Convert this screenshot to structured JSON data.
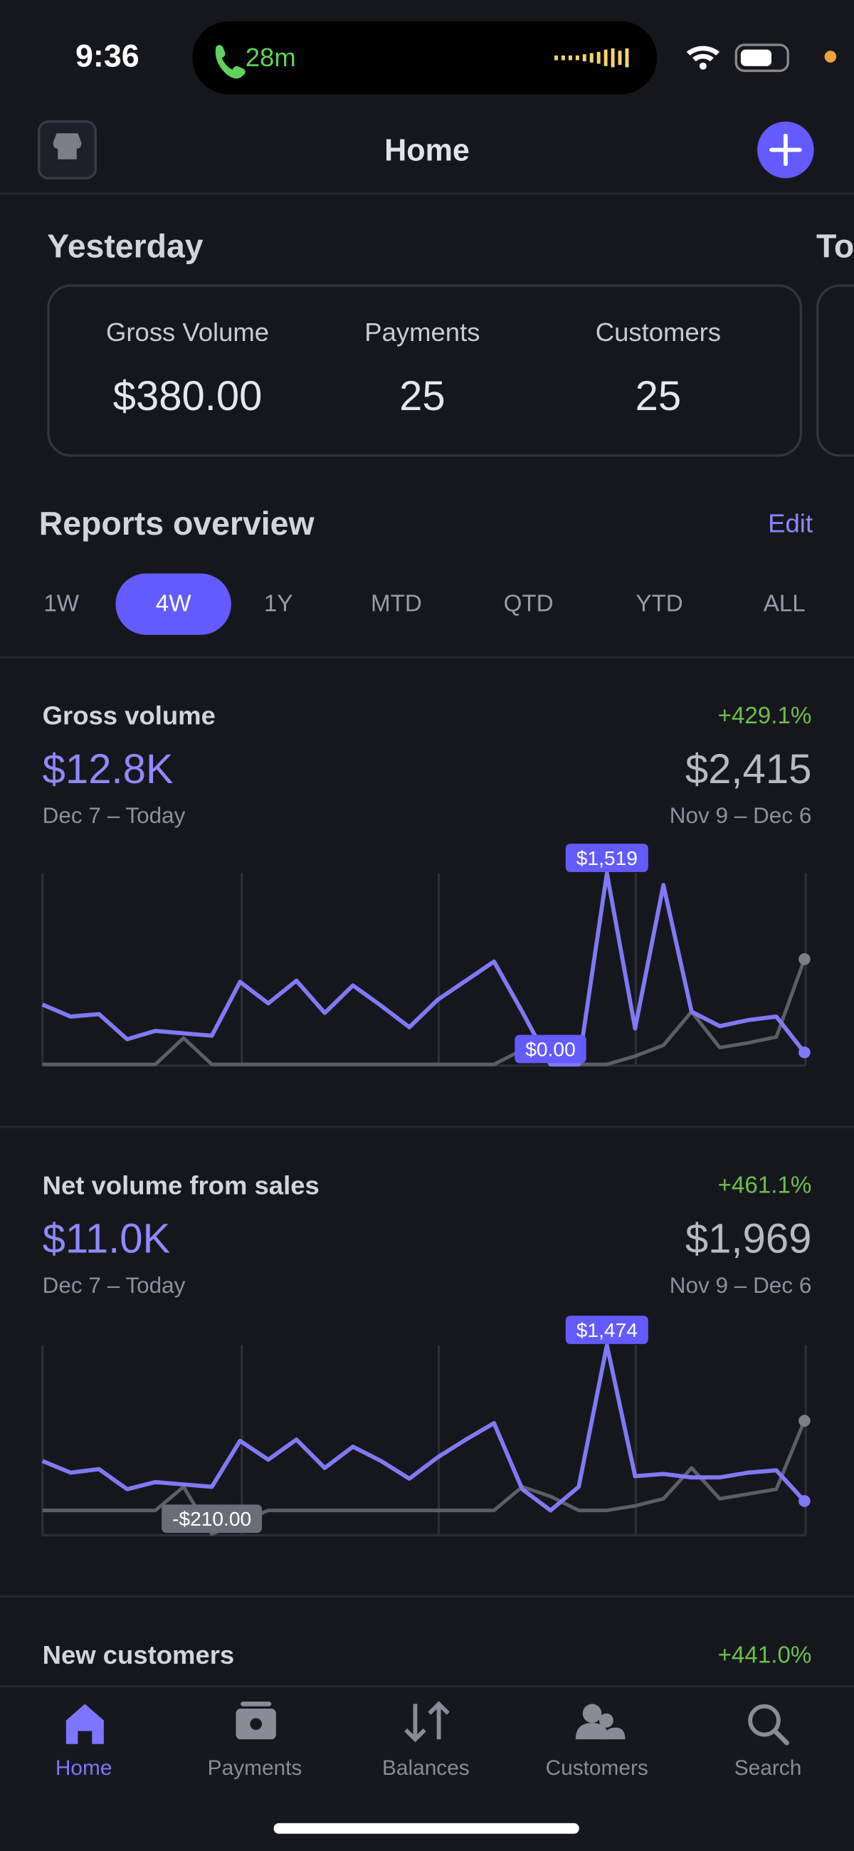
{
  "status_bar": {
    "time": "9:36",
    "call": "28m"
  },
  "header": {
    "title": "Home"
  },
  "summary": {
    "title": "Yesterday",
    "next_title": "To",
    "metrics": [
      {
        "label": "Gross Volume",
        "value": "$380.00"
      },
      {
        "label": "Payments",
        "value": "25"
      },
      {
        "label": "Customers",
        "value": "25"
      }
    ]
  },
  "reports": {
    "title": "Reports overview",
    "action": "Edit",
    "ranges": [
      "1W",
      "4W",
      "1Y",
      "MTD",
      "QTD",
      "YTD",
      "ALL"
    ],
    "selected_range": "4W"
  },
  "charts": [
    {
      "type": "line",
      "title": "Gross volume",
      "change": "+429.1%",
      "current_total": "$12.8K",
      "previous_total": "$2,415",
      "current_period": "Dec 7 – Today",
      "previous_period": "Nov 9 – Dec 6",
      "series": [
        {
          "color": "#8079f6",
          "values": [
            475,
            380,
            399,
            200,
            266,
            247,
            228,
            655,
            485,
            665,
            409,
            627,
            466,
            295,
            513,
            665,
            817,
            418,
            0,
            0,
            1519,
            285,
            1425,
            418,
            304,
            352,
            380,
            95
          ],
          "value_labels": [
            null,
            null,
            null,
            null,
            null,
            null,
            null,
            null,
            null,
            null,
            null,
            null,
            null,
            null,
            null,
            null,
            null,
            null,
            "$0.00",
            null,
            "$1,519",
            null,
            null,
            null,
            null,
            null,
            null,
            null
          ]
        },
        {
          "color": "#5d5f66",
          "values": [
            0,
            0,
            0,
            0,
            0,
            209,
            0,
            0,
            0,
            0,
            0,
            0,
            0,
            0,
            0,
            0,
            0,
            114,
            19,
            0,
            0,
            66,
            152,
            418,
            133,
            171,
            218,
            836
          ]
        }
      ]
    },
    {
      "type": "line",
      "title": "Net volume from sales",
      "change": "+461.1%",
      "current_total": "$11.0K",
      "previous_total": "$1,969",
      "current_period": "Dec 7 – Today",
      "previous_period": "Nov 9 – Dec 6",
      "series": [
        {
          "color": "#8079f6",
          "values": [
            442,
            337,
            369,
            190,
            253,
            232,
            211,
            621,
            453,
            632,
            379,
            569,
            442,
            284,
            474,
            632,
            779,
            190,
            0,
            211,
            1474,
            306,
            326,
            295,
            295,
            337,
            358,
            84
          ],
          "value_labels": [
            null,
            null,
            null,
            null,
            null,
            null,
            null,
            null,
            null,
            null,
            null,
            null,
            null,
            null,
            null,
            null,
            null,
            null,
            null,
            null,
            "$1,474",
            null,
            null,
            null,
            null,
            null,
            null,
            null
          ]
        },
        {
          "color": "#5d5f66",
          "values": [
            0,
            0,
            0,
            0,
            0,
            211,
            -210,
            -105,
            0,
            0,
            0,
            0,
            0,
            0,
            0,
            0,
            0,
            211,
            126,
            0,
            0,
            42,
            105,
            379,
            105,
            147,
            190,
            800
          ],
          "value_labels": [
            null,
            null,
            null,
            null,
            null,
            null,
            "-$210.00",
            null,
            null,
            null,
            null,
            null,
            null,
            null,
            null,
            null,
            null,
            null,
            null,
            null,
            null,
            null,
            null,
            null,
            null,
            null,
            null,
            null
          ]
        }
      ]
    }
  ],
  "new_customers": {
    "title": "New customers",
    "change": "+441.0%"
  },
  "tab_bar": {
    "tabs": [
      "Home",
      "Payments",
      "Balances",
      "Customers",
      "Search"
    ],
    "selected": "Home"
  }
}
